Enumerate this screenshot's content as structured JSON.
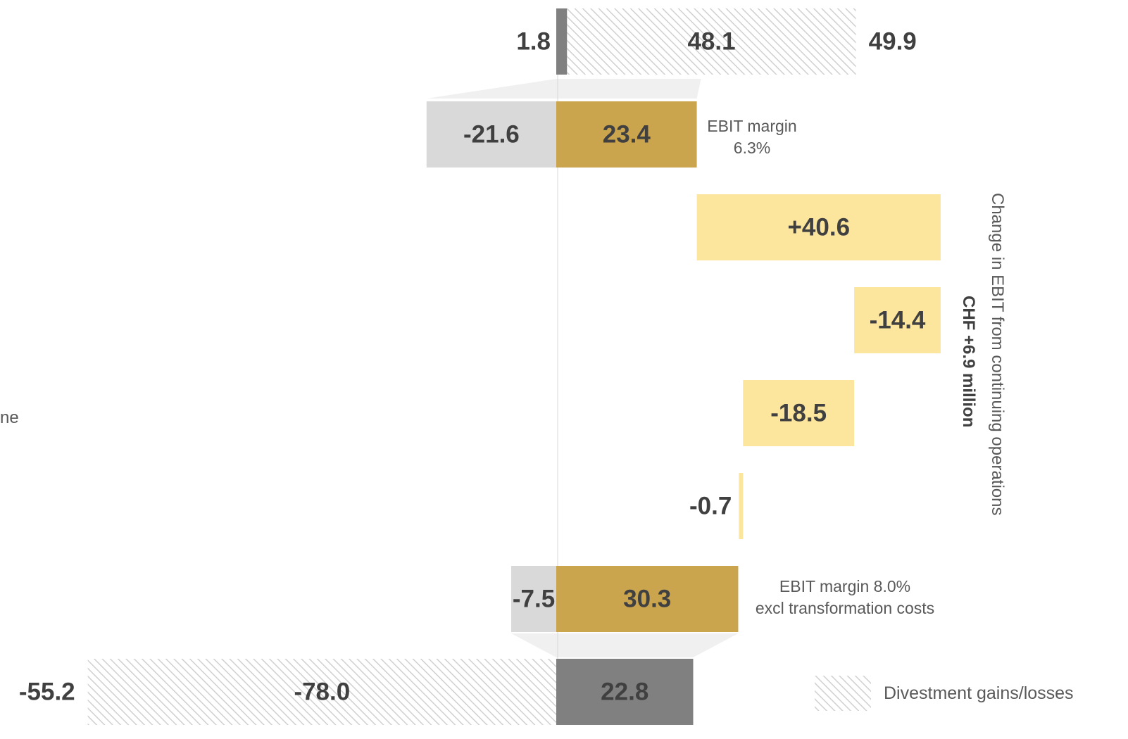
{
  "chart_data": {
    "type": "bar",
    "orientation": "horizontal",
    "subtype": "waterfall",
    "rows": [
      {
        "id": "top",
        "segments": [
          {
            "value": 1.8,
            "kind": "dark",
            "label": "1.8"
          },
          {
            "value": 48.1,
            "kind": "hatch",
            "label": "48.1"
          }
        ],
        "total_label": "49.9"
      },
      {
        "id": "ebit-1",
        "segments": [
          {
            "value": -21.6,
            "kind": "light-gray",
            "label": "-21.6"
          },
          {
            "value": 23.4,
            "kind": "gold",
            "label": "23.4"
          }
        ],
        "note": [
          "EBIT margin",
          "6.3%"
        ]
      },
      {
        "id": "bridge-1",
        "from": 23.4,
        "value": 40.6,
        "kind": "light-yellow",
        "label": "+40.6"
      },
      {
        "id": "bridge-2",
        "from": 64.0,
        "value": -14.4,
        "kind": "light-yellow",
        "label": "-14.4"
      },
      {
        "id": "bridge-3",
        "from": 49.6,
        "value": -18.5,
        "kind": "light-yellow",
        "label": "-18.5"
      },
      {
        "id": "bridge-4",
        "from": 31.1,
        "value": -0.7,
        "kind": "light-yellow",
        "label": "-0.7"
      },
      {
        "id": "ebit-2",
        "segments": [
          {
            "value": -7.5,
            "kind": "light-gray",
            "label": "-7.5"
          },
          {
            "value": 30.3,
            "kind": "gold",
            "label": "30.3"
          }
        ],
        "note": [
          "EBIT margin 8.0%",
          "excl transformation costs"
        ]
      },
      {
        "id": "bottom",
        "segments": [
          {
            "value": -78.0,
            "kind": "hatch",
            "label": "-78.0"
          },
          {
            "value": 22.8,
            "kind": "dark",
            "label": "22.8"
          }
        ],
        "total_label": "-55.2"
      }
    ],
    "colors": {
      "dark": "#808080",
      "gold": "#cba54e",
      "light-gray": "#d9d9d9",
      "light-yellow": "#fce59c",
      "hatch": "#d0d0d0",
      "funnel": "#f0f0f0",
      "text": "#404040",
      "note": "#595959"
    },
    "annotation": {
      "line1": "Change in EBIT from continuing operations",
      "line2": "CHF +6.9 million"
    },
    "legend": {
      "label": "Divestment gains/losses",
      "kind": "hatch",
      "position": "bottom-right"
    },
    "cut_text": "ne"
  }
}
